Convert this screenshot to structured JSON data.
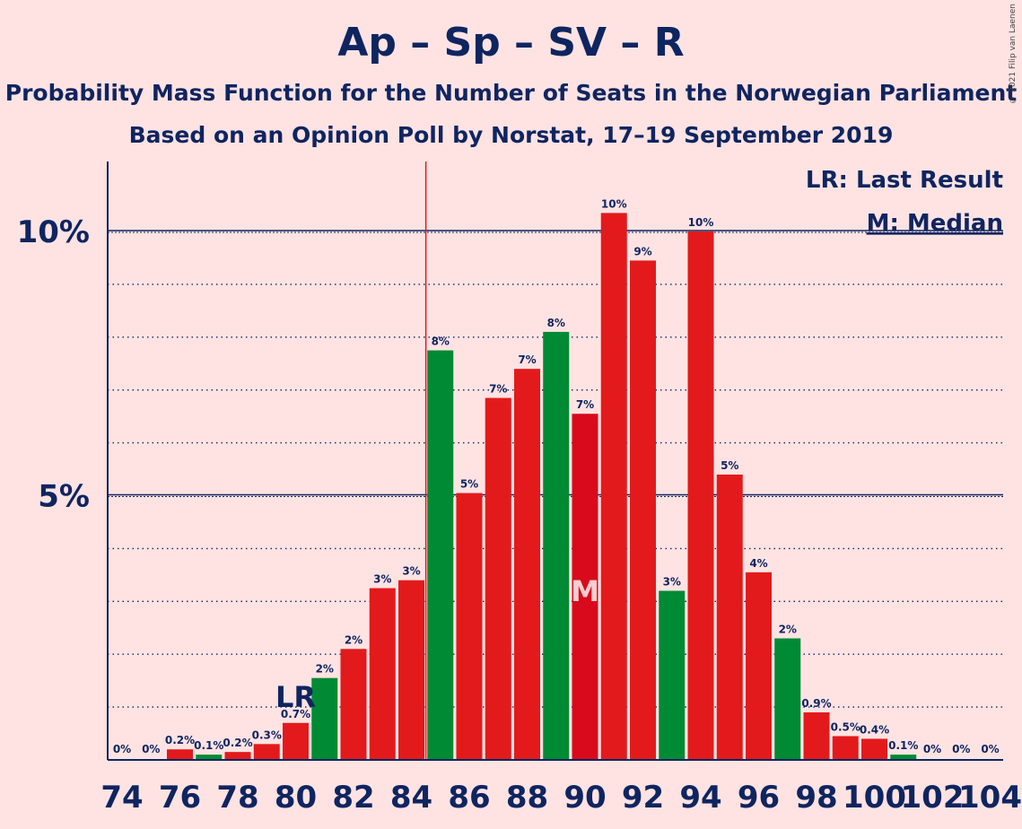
{
  "header": {
    "title": "Ap – Sp – SV – R",
    "subtitle": "Probability Mass Function for the Number of Seats in the Norwegian Parliament",
    "source": "Based on an Opinion Poll by Norstat, 17–19 September 2019",
    "copyright": "© 2021 Filip van Laenen"
  },
  "legend": {
    "last_result": "LR: Last Result",
    "median": "M: Median"
  },
  "markers": {
    "last_result_label": "LR",
    "median_label": "M",
    "last_result_seat": 80,
    "median_seat": 90
  },
  "colors": {
    "red": "#E31A1C",
    "green": "#008A34",
    "dark_red": "#D90A1C",
    "text": "#0F2560",
    "background": "#FFE3E3",
    "majority_line": "#E31A1C"
  },
  "chart_data": {
    "type": "bar",
    "xlabel": "",
    "ylabel": "",
    "ylim": [
      0,
      11.3
    ],
    "ytick_labels": [
      "5%",
      "10%"
    ],
    "ytick_values": [
      5,
      10
    ],
    "minor_gridlines_at": [
      1,
      2,
      3,
      4,
      6,
      7,
      8,
      9
    ],
    "majority_line_at_seat": 84.5,
    "x_tick_labels": [
      "74",
      "76",
      "78",
      "80",
      "82",
      "84",
      "86",
      "88",
      "90",
      "92",
      "94",
      "96",
      "98",
      "100",
      "102",
      "104"
    ],
    "seats": [
      74,
      75,
      76,
      77,
      78,
      79,
      80,
      81,
      82,
      83,
      84,
      85,
      86,
      87,
      88,
      89,
      90,
      91,
      92,
      93,
      94,
      95,
      96,
      97,
      98,
      99,
      100,
      101,
      102,
      103,
      104
    ],
    "values": [
      0,
      0,
      0.2,
      0.1,
      0.15,
      0.3,
      0.7,
      1.55,
      2.1,
      3.25,
      3.4,
      7.75,
      5.05,
      6.85,
      7.4,
      8.1,
      6.55,
      10.35,
      9.45,
      3.2,
      10.0,
      5.4,
      3.55,
      2.3,
      0.9,
      0.45,
      0.4,
      0.1,
      0,
      0,
      0
    ],
    "data_labels": [
      "0%",
      "0%",
      "0.2%",
      "0.1%",
      "0.2%",
      "0.3%",
      "0.7%",
      "2%",
      "2%",
      "3%",
      "3%",
      "8%",
      "5%",
      "7%",
      "7%",
      "8%",
      "7%",
      "10%",
      "9%",
      "3%",
      "10%",
      "5%",
      "4%",
      "2%",
      "0.9%",
      "0.5%",
      "0.4%",
      "0.1%",
      "0%",
      "0%",
      "0%"
    ],
    "bar_colors": [
      "red",
      "red",
      "red",
      "green",
      "red",
      "red",
      "red",
      "green",
      "red",
      "red",
      "red",
      "green",
      "red",
      "red",
      "red",
      "green",
      "dark_red",
      "red",
      "red",
      "green",
      "red",
      "red",
      "red",
      "green",
      "red",
      "red",
      "red",
      "green",
      "red",
      "red",
      "red"
    ],
    "grid": true
  }
}
